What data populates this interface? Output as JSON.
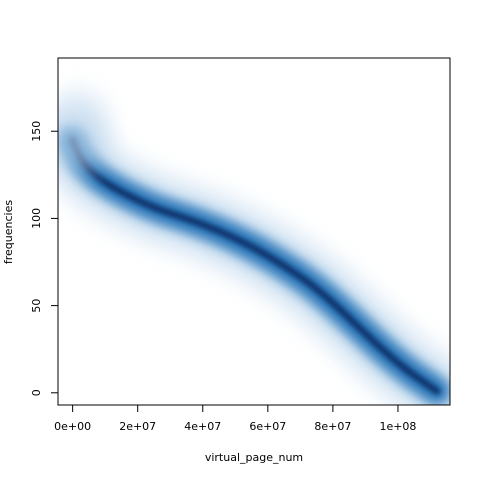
{
  "chart_data": {
    "type": "heatmap",
    "style": "smoothScatter density",
    "title": "",
    "xlabel": "virtual_page_num",
    "ylabel": "frequencies",
    "xlim": [
      -4500000,
      116000000
    ],
    "ylim": [
      -7,
      192
    ],
    "x_ticks": [
      {
        "value": 0,
        "label": "0e+00"
      },
      {
        "value": 20000000,
        "label": "2e+07"
      },
      {
        "value": 40000000,
        "label": "4e+07"
      },
      {
        "value": 60000000,
        "label": "6e+07"
      },
      {
        "value": 80000000,
        "label": "8e+07"
      },
      {
        "value": 100000000,
        "label": "1e+08"
      }
    ],
    "y_ticks": [
      {
        "value": 0,
        "label": "0"
      },
      {
        "value": 50,
        "label": "50"
      },
      {
        "value": 100,
        "label": "100"
      },
      {
        "value": 150,
        "label": "150"
      }
    ],
    "density_ridge": [
      {
        "x": 0,
        "y": 145
      },
      {
        "x": 3000000,
        "y": 132
      },
      {
        "x": 8000000,
        "y": 123
      },
      {
        "x": 15000000,
        "y": 115
      },
      {
        "x": 25000000,
        "y": 106
      },
      {
        "x": 35000000,
        "y": 100
      },
      {
        "x": 45000000,
        "y": 93
      },
      {
        "x": 55000000,
        "y": 84
      },
      {
        "x": 65000000,
        "y": 73
      },
      {
        "x": 75000000,
        "y": 60
      },
      {
        "x": 85000000,
        "y": 43
      },
      {
        "x": 95000000,
        "y": 25
      },
      {
        "x": 102000000,
        "y": 14
      },
      {
        "x": 108000000,
        "y": 6
      },
      {
        "x": 112000000,
        "y": 1
      }
    ],
    "grid": false,
    "legend": "none",
    "colors": {
      "density_high": "#08306b",
      "density_mid": "#2171b5",
      "density_low": "#c6dbef",
      "background": "#ffffff"
    }
  }
}
